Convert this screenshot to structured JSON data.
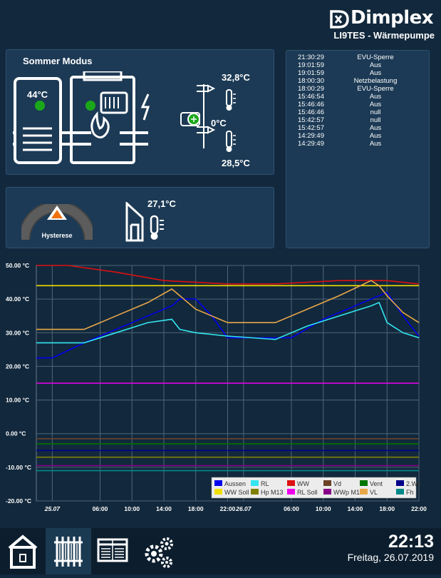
{
  "header": {
    "brand": "Dimplex",
    "device": "LI9TES - Wärmepumpe"
  },
  "status_panel": {
    "mode": "Sommer Modus",
    "storage_temp": "44°C",
    "flow_temp": "32,8°C",
    "pump_temp": "0°C",
    "return_temp": "28,5°C"
  },
  "outdoor_panel": {
    "gauge_label": "Hysterese",
    "outdoor_temp": "27,1°C"
  },
  "log": [
    {
      "time": "21:30:29",
      "msg": "EVU-Sperre"
    },
    {
      "time": "19:01:59",
      "msg": "Aus"
    },
    {
      "time": "19:01:59",
      "msg": "Aus"
    },
    {
      "time": "18:00:30",
      "msg": "Netzbelastung"
    },
    {
      "time": "18:00:29",
      "msg": "EVU-Sperre"
    },
    {
      "time": "15:46:54",
      "msg": "Aus"
    },
    {
      "time": "15:46:46",
      "msg": "Aus"
    },
    {
      "time": "15:46:46",
      "msg": "null"
    },
    {
      "time": "15:42:57",
      "msg": "null"
    },
    {
      "time": "15:42:57",
      "msg": "Aus"
    },
    {
      "time": "14:29:49",
      "msg": "Aus"
    },
    {
      "time": "14:29:49",
      "msg": "Aus"
    }
  ],
  "chart_data": {
    "type": "line",
    "ylim": [
      -20,
      50
    ],
    "y_ticks": [
      -20,
      -10,
      0,
      10,
      20,
      30,
      40,
      50
    ],
    "y_tick_labels": [
      "-20.00 °C",
      "-10.00 °C",
      "0.00 °C",
      "10.00 °C",
      "20.00 °C",
      "30.00 °C",
      "40.00 °C",
      "50.00 °C"
    ],
    "x_range": [
      -2,
      46
    ],
    "x_ticks": [
      0,
      6,
      10,
      14,
      18,
      22,
      24,
      30,
      34,
      38,
      42,
      46
    ],
    "x_tick_labels": [
      "25.07",
      "06:00",
      "10:00",
      "14:00",
      "18:00",
      "22:00",
      "26.07",
      "06:00",
      "10:00",
      "14:00",
      "18:00",
      "22:00"
    ],
    "bold_ticks": [
      0,
      24
    ],
    "series": [
      {
        "name": "Aussen",
        "color": "#0000ee",
        "x": [
          -2,
          0,
          4,
          8,
          12,
          15,
          16,
          18,
          20,
          22,
          30,
          34,
          38,
          42,
          44,
          46
        ],
        "y": [
          22.5,
          22.5,
          27,
          31,
          35,
          38,
          40,
          40,
          35,
          28.5,
          28.5,
          34,
          38,
          42,
          35,
          29
        ]
      },
      {
        "name": "RL",
        "color": "#33e5f0",
        "x": [
          -2,
          4,
          8,
          12,
          15,
          16,
          18,
          22,
          28,
          32,
          36,
          40,
          41,
          42,
          44,
          46
        ],
        "y": [
          27,
          27,
          30,
          33,
          34,
          31,
          30,
          29,
          28,
          32,
          35,
          38,
          39,
          33,
          30,
          28.5
        ]
      },
      {
        "name": "WW",
        "color": "#dd1111",
        "x": [
          -2,
          2,
          8,
          14,
          22,
          28,
          32,
          36,
          40,
          42,
          44,
          46
        ],
        "y": [
          50,
          50,
          48,
          45.5,
          44.5,
          44.5,
          45,
          45.5,
          45.5,
          45.5,
          45,
          44.5
        ]
      },
      {
        "name": "Vd",
        "color": "#6b4226",
        "x": [
          -2,
          46
        ],
        "y": [
          -1.5,
          -1.5
        ]
      },
      {
        "name": "Vent",
        "color": "#007700",
        "x": [
          -2,
          46
        ],
        "y": [
          -3,
          -3
        ]
      },
      {
        "name": "2.Wa",
        "color": "#000088",
        "x": [
          -2,
          46
        ],
        "y": [
          -5,
          -5
        ]
      },
      {
        "name": "WW Soll",
        "color": "#f0e000",
        "x": [
          -2,
          46
        ],
        "y": [
          44,
          44
        ]
      },
      {
        "name": "Hp M13",
        "color": "#808000",
        "x": [
          -2,
          46
        ],
        "y": [
          -7,
          -7
        ]
      },
      {
        "name": "RL Soll",
        "color": "#ee00ee",
        "x": [
          -2,
          46
        ],
        "y": [
          15,
          15
        ]
      },
      {
        "name": "WWp M18",
        "color": "#880088",
        "x": [
          -2,
          46
        ],
        "y": [
          -9.5,
          -9.5
        ]
      },
      {
        "name": "VL",
        "color": "#e8a848",
        "x": [
          -2,
          4,
          8,
          12,
          15,
          16,
          18,
          22,
          28,
          32,
          36,
          40,
          41,
          42,
          44,
          46
        ],
        "y": [
          31,
          31,
          35,
          39,
          43,
          41,
          37,
          33,
          33,
          37,
          41,
          45.5,
          44,
          41,
          36,
          33
        ]
      },
      {
        "name": "Fh",
        "color": "#008888",
        "x": [
          -2,
          46
        ],
        "y": [
          -11,
          -11
        ]
      }
    ],
    "legend_position": "bottom-right"
  },
  "footer": {
    "time": "22:13",
    "date": "Freitag, 26.07.2019"
  },
  "colors": {
    "background": "#12283c",
    "panel": "#1c3a55",
    "led_green": "#1aa81a",
    "footer": "#0c1e2e"
  }
}
